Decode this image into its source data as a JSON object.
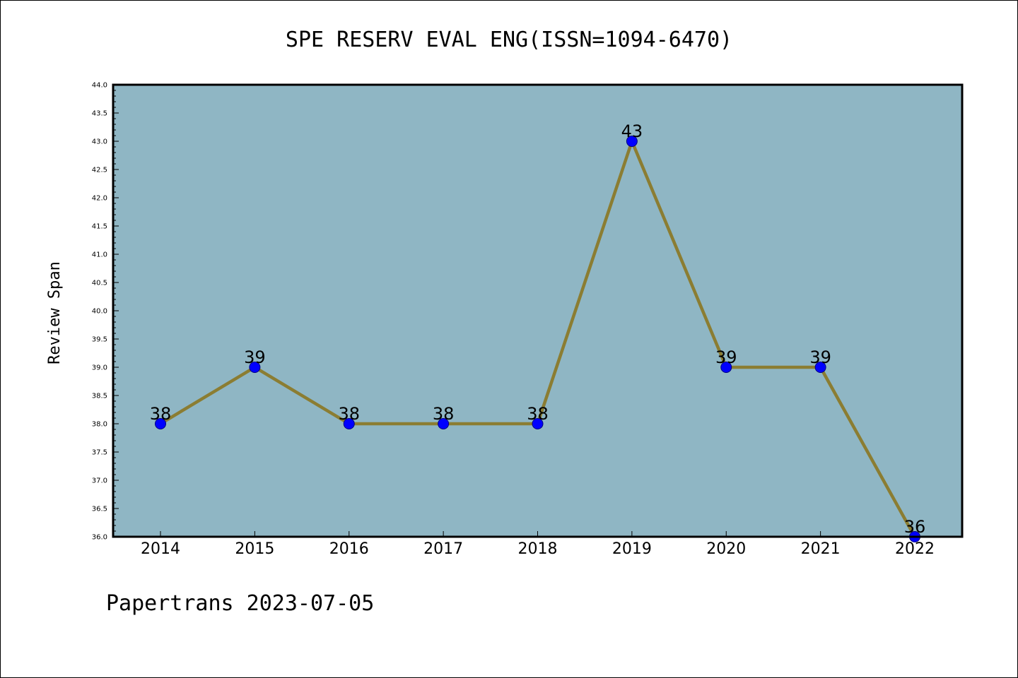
{
  "chart_data": {
    "type": "line",
    "title": "SPE RESERV EVAL ENG(ISSN=1094-6470)",
    "xlabel": "",
    "ylabel": "Review Span",
    "categories": [
      "2014",
      "2015",
      "2016",
      "2017",
      "2018",
      "2019",
      "2020",
      "2021",
      "2022"
    ],
    "series": [
      {
        "values": [
          38,
          39,
          38,
          38,
          38,
          43,
          39,
          39,
          36
        ]
      }
    ],
    "data_labels": [
      "38",
      "39",
      "38",
      "38",
      "38",
      "43",
      "39",
      "39",
      "36"
    ],
    "ylim": [
      36.0,
      44.0
    ],
    "yticks": [
      "36.0",
      "36.5",
      "37.0",
      "37.5",
      "38.0",
      "38.5",
      "39.0",
      "39.5",
      "40.0",
      "40.5",
      "41.0",
      "41.5",
      "42.0",
      "42.5",
      "43.0",
      "43.5",
      "44.0"
    ],
    "grid": false,
    "colors": {
      "plot_background": "#8fb6c4",
      "line": "#8b7d32",
      "marker": "#0000ff",
      "marker_edge": "#000080"
    }
  },
  "footer": "Papertrans 2023-07-05"
}
